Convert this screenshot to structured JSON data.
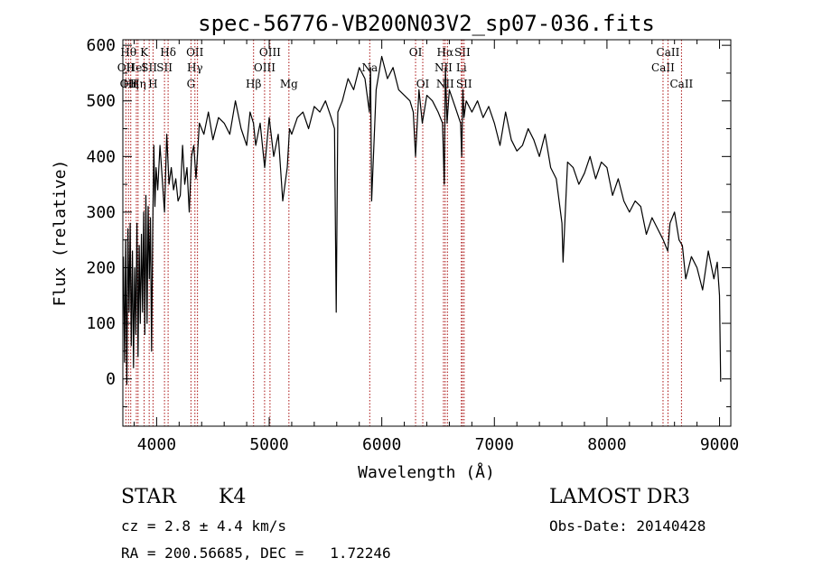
{
  "chart_data": {
    "type": "line",
    "title": "spec-56776-VB200N03V2_sp07-036.fits",
    "xlabel": "Wavelength (Å)",
    "ylabel": "Flux (relative)",
    "xlim": [
      3700,
      9100
    ],
    "ylim": [
      -85,
      610
    ],
    "xticks": [
      4000,
      5000,
      6000,
      7000,
      8000,
      9000
    ],
    "yticks": [
      0,
      100,
      200,
      300,
      400,
      500,
      600
    ],
    "grid": false,
    "series": [
      {
        "name": "flux",
        "color": "#000000",
        "x": [
          3705,
          3715,
          3725,
          3735,
          3745,
          3755,
          3765,
          3775,
          3785,
          3795,
          3805,
          3815,
          3825,
          3835,
          3845,
          3855,
          3865,
          3875,
          3885,
          3895,
          3905,
          3915,
          3925,
          3935,
          3945,
          3955,
          3965,
          3975,
          3985,
          3995,
          4010,
          4030,
          4050,
          4070,
          4090,
          4110,
          4130,
          4150,
          4170,
          4190,
          4210,
          4230,
          4250,
          4270,
          4290,
          4310,
          4330,
          4350,
          4380,
          4420,
          4460,
          4500,
          4550,
          4600,
          4650,
          4700,
          4750,
          4800,
          4830,
          4860,
          4880,
          4920,
          4960,
          5000,
          5040,
          5080,
          5120,
          5160,
          5180,
          5200,
          5250,
          5300,
          5350,
          5400,
          5450,
          5500,
          5550,
          5580,
          5595,
          5610,
          5650,
          5700,
          5750,
          5800,
          5850,
          5890,
          5900,
          5910,
          5950,
          6000,
          6050,
          6100,
          6150,
          6200,
          6250,
          6280,
          6300,
          6330,
          6360,
          6400,
          6450,
          6500,
          6540,
          6555,
          6565,
          6580,
          6600,
          6650,
          6700,
          6710,
          6720,
          6730,
          6750,
          6800,
          6850,
          6900,
          6950,
          7000,
          7050,
          7100,
          7150,
          7200,
          7250,
          7300,
          7350,
          7400,
          7450,
          7500,
          7550,
          7600,
          7610,
          7650,
          7700,
          7750,
          7800,
          7850,
          7900,
          7950,
          8000,
          8050,
          8100,
          8150,
          8200,
          8250,
          8300,
          8350,
          8400,
          8450,
          8500,
          8540,
          8560,
          8600,
          8640,
          8670,
          8700,
          8750,
          8800,
          8850,
          8900,
          8950,
          8980,
          9000,
          9010
        ],
        "y": [
          220,
          30,
          250,
          -10,
          270,
          120,
          280,
          60,
          230,
          20,
          200,
          80,
          280,
          40,
          240,
          100,
          260,
          120,
          300,
          80,
          330,
          100,
          310,
          180,
          290,
          50,
          260,
          420,
          310,
          380,
          340,
          420,
          360,
          300,
          440,
          350,
          380,
          340,
          360,
          320,
          330,
          420,
          350,
          380,
          300,
          400,
          420,
          360,
          460,
          440,
          480,
          430,
          470,
          460,
          440,
          500,
          450,
          420,
          480,
          460,
          420,
          460,
          380,
          470,
          400,
          440,
          320,
          380,
          450,
          440,
          470,
          480,
          450,
          490,
          480,
          500,
          470,
          450,
          120,
          480,
          500,
          540,
          520,
          560,
          540,
          480,
          560,
          320,
          520,
          580,
          540,
          560,
          520,
          510,
          500,
          480,
          400,
          520,
          460,
          510,
          500,
          480,
          460,
          350,
          560,
          460,
          520,
          490,
          460,
          400,
          520,
          470,
          500,
          480,
          500,
          470,
          490,
          460,
          420,
          480,
          430,
          410,
          420,
          450,
          430,
          400,
          440,
          380,
          360,
          280,
          210,
          390,
          380,
          350,
          370,
          400,
          360,
          390,
          380,
          330,
          360,
          320,
          300,
          320,
          310,
          260,
          290,
          270,
          250,
          230,
          280,
          300,
          250,
          240,
          180,
          220,
          200,
          160,
          230,
          180,
          210,
          150,
          -5
        ]
      }
    ],
    "lines": [
      {
        "x": 3727,
        "labels": [
          "OII"
        ],
        "rows": [
          2
        ]
      },
      {
        "x": 3750,
        "labels": [
          "Hθ",
          "OII"
        ],
        "rows": [
          1,
          3
        ]
      },
      {
        "x": 3770,
        "labels": [
          "Hη"
        ],
        "rows": [
          3
        ]
      },
      {
        "x": 3820,
        "labels": [
          "HeI"
        ],
        "rows": [
          2
        ]
      },
      {
        "x": 3835,
        "labels": [
          "Hη"
        ],
        "rows": [
          3
        ]
      },
      {
        "x": 3889,
        "labels": [
          "K"
        ],
        "rows": [
          1
        ]
      },
      {
        "x": 3934,
        "labels": [
          "SII"
        ],
        "rows": [
          2
        ]
      },
      {
        "x": 3968,
        "labels": [
          "H"
        ],
        "rows": [
          3
        ]
      },
      {
        "x": 4070,
        "labels": [
          "SII"
        ],
        "rows": [
          2
        ]
      },
      {
        "x": 4102,
        "labels": [
          "Hδ"
        ],
        "rows": [
          1
        ]
      },
      {
        "x": 4305,
        "labels": [
          "G"
        ],
        "rows": [
          3
        ]
      },
      {
        "x": 4340,
        "labels": [
          "OII",
          "Hγ"
        ],
        "rows": [
          1,
          2
        ]
      },
      {
        "x": 4363,
        "labels": [],
        "rows": []
      },
      {
        "x": 4861,
        "labels": [
          "Hβ"
        ],
        "rows": [
          3
        ]
      },
      {
        "x": 4959,
        "labels": [
          "OIII"
        ],
        "rows": [
          2
        ]
      },
      {
        "x": 5007,
        "labels": [
          "OIII"
        ],
        "rows": [
          1
        ]
      },
      {
        "x": 5175,
        "labels": [
          "Mg"
        ],
        "rows": [
          3
        ]
      },
      {
        "x": 5893,
        "labels": [
          "Na"
        ],
        "rows": [
          2
        ]
      },
      {
        "x": 6300,
        "labels": [
          "OI"
        ],
        "rows": [
          1
        ]
      },
      {
        "x": 6364,
        "labels": [
          "OI"
        ],
        "rows": [
          3
        ]
      },
      {
        "x": 6548,
        "labels": [
          "NII"
        ],
        "rows": [
          2
        ]
      },
      {
        "x": 6563,
        "labels": [
          "Hα",
          "NII"
        ],
        "rows": [
          1,
          3
        ]
      },
      {
        "x": 6583,
        "labels": [],
        "rows": []
      },
      {
        "x": 6707,
        "labels": [
          "Li"
        ],
        "rows": [
          2
        ]
      },
      {
        "x": 6716,
        "labels": [
          "SII"
        ],
        "rows": [
          1
        ]
      },
      {
        "x": 6731,
        "labels": [
          "SII"
        ],
        "rows": [
          3
        ]
      },
      {
        "x": 8498,
        "labels": [
          "CaII"
        ],
        "rows": [
          2
        ]
      },
      {
        "x": 8542,
        "labels": [
          "CaII"
        ],
        "rows": [
          1
        ]
      },
      {
        "x": 8662,
        "labels": [
          "CaII"
        ],
        "rows": [
          3
        ]
      }
    ]
  },
  "info": {
    "class_label": "STAR",
    "subclass_label": "K4",
    "survey_label": "LAMOST DR3",
    "cz_line": "cz = 2.8 ± 4.4 km/s",
    "obs_date_line": "Obs-Date: 20140428",
    "radec_line": "RA = 200.56685, DEC =   1.72246"
  },
  "colors": {
    "spectrum": "#000000",
    "line_marker": "#aa1111",
    "axes": "#000000"
  }
}
